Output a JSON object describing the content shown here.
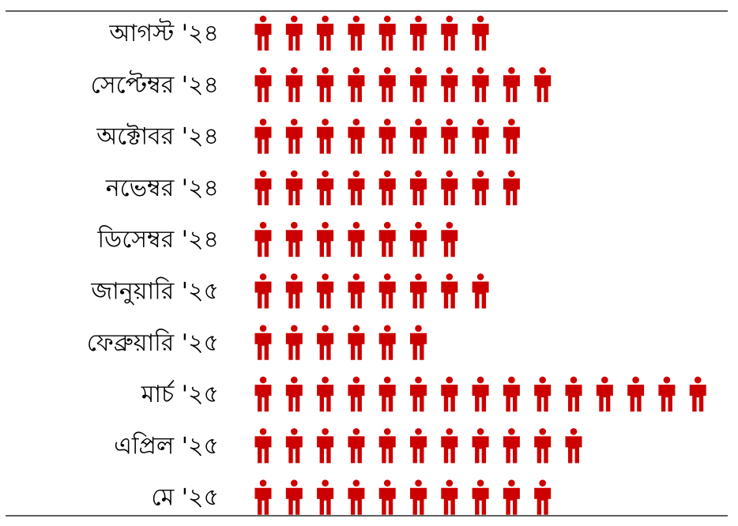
{
  "chart_data": {
    "type": "pictograph",
    "icon": "person-icon",
    "icon_color": "#cc0000",
    "categories": [
      "আগস্ট '২৪",
      "সেপ্টেম্বর '২৪",
      "অক্টোবর '২৪",
      "নভেম্বর '২৪",
      "ডিসেম্বর '২৪",
      "জানুয়ারি '২৫",
      "ফেব্রুয়ারি '২৫",
      "মার্চ '২৫",
      "এপ্রিল '২৫",
      "মে '২৫"
    ],
    "values": [
      8,
      10,
      9,
      9,
      7,
      8,
      6,
      15,
      11,
      10
    ]
  }
}
